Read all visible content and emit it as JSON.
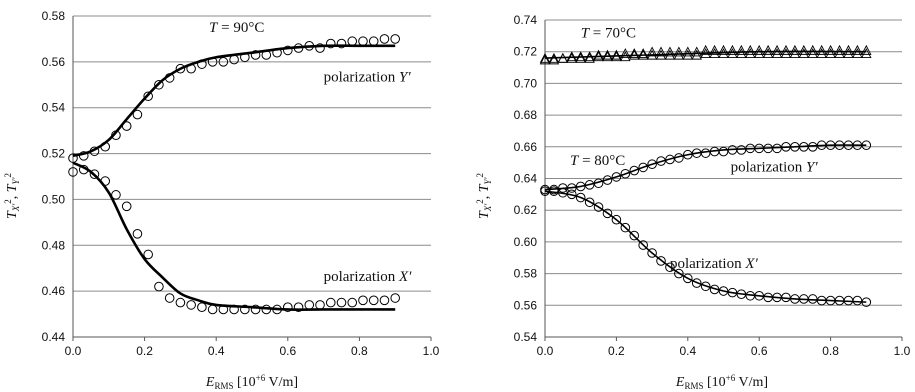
{
  "chart_data": [
    {
      "type": "scatter",
      "xlabel": "E_RMS [10^+6 V/m]",
      "ylabel": "T_X'^2, T_Y'^2",
      "xlim": [
        0.0,
        1.0
      ],
      "ylim": [
        0.44,
        0.58
      ],
      "x_ticks": [
        "0.0",
        "0.2",
        "0.4",
        "0.6",
        "0.8",
        "1.0"
      ],
      "y_ticks": [
        "0.44",
        "0.46",
        "0.48",
        "0.50",
        "0.52",
        "0.54",
        "0.56",
        "0.58"
      ],
      "grid": "horizontal",
      "annotations": [
        {
          "text": "T = 90°C",
          "x": 0.38,
          "y": 0.573
        },
        {
          "text": "polarization Y′",
          "x": 0.7,
          "y": 0.5515
        },
        {
          "text": "polarization X′",
          "x": 0.7,
          "y": 0.4645
        }
      ],
      "series": [
        {
          "marker": "circle",
          "curve": "Y′ measured",
          "x": [
            0.0,
            0.03,
            0.06,
            0.09,
            0.12,
            0.15,
            0.18,
            0.21,
            0.24,
            0.27,
            0.3,
            0.33,
            0.36,
            0.39,
            0.42,
            0.45,
            0.48,
            0.51,
            0.54,
            0.57,
            0.6,
            0.63,
            0.66,
            0.69,
            0.72,
            0.75,
            0.78,
            0.81,
            0.84,
            0.87,
            0.9
          ],
          "y": [
            0.518,
            0.519,
            0.521,
            0.523,
            0.528,
            0.532,
            0.537,
            0.545,
            0.55,
            0.553,
            0.557,
            0.557,
            0.559,
            0.56,
            0.56,
            0.561,
            0.562,
            0.563,
            0.563,
            0.564,
            0.565,
            0.566,
            0.567,
            0.566,
            0.568,
            0.568,
            0.569,
            0.569,
            0.569,
            0.57,
            0.57
          ]
        },
        {
          "marker": "circle",
          "curve": "X′ measured",
          "x": [
            0.0,
            0.03,
            0.06,
            0.09,
            0.12,
            0.15,
            0.18,
            0.21,
            0.24,
            0.27,
            0.3,
            0.33,
            0.36,
            0.39,
            0.42,
            0.45,
            0.48,
            0.51,
            0.54,
            0.57,
            0.6,
            0.63,
            0.66,
            0.69,
            0.72,
            0.75,
            0.78,
            0.81,
            0.84,
            0.87,
            0.9
          ],
          "y": [
            0.512,
            0.513,
            0.511,
            0.508,
            0.502,
            0.497,
            0.485,
            0.476,
            0.462,
            0.457,
            0.455,
            0.454,
            0.453,
            0.452,
            0.452,
            0.452,
            0.452,
            0.452,
            0.452,
            0.452,
            0.453,
            0.453,
            0.454,
            0.454,
            0.455,
            0.455,
            0.455,
            0.456,
            0.456,
            0.456,
            0.457
          ]
        },
        {
          "marker": "line",
          "curve": "Y′ fit",
          "x": [
            0.0,
            0.05,
            0.1,
            0.15,
            0.2,
            0.25,
            0.3,
            0.35,
            0.4,
            0.5,
            0.6,
            0.7,
            0.8,
            0.9
          ],
          "y": [
            0.519,
            0.521,
            0.526,
            0.535,
            0.544,
            0.552,
            0.557,
            0.56,
            0.562,
            0.564,
            0.566,
            0.567,
            0.567,
            0.567
          ]
        },
        {
          "marker": "line",
          "curve": "X′ fit",
          "x": [
            0.0,
            0.05,
            0.1,
            0.15,
            0.2,
            0.25,
            0.3,
            0.35,
            0.4,
            0.5,
            0.6,
            0.7,
            0.8,
            0.9
          ],
          "y": [
            0.516,
            0.512,
            0.503,
            0.487,
            0.474,
            0.466,
            0.459,
            0.456,
            0.454,
            0.453,
            0.452,
            0.452,
            0.452,
            0.452
          ]
        }
      ]
    },
    {
      "type": "scatter",
      "xlabel": "E_RMS [10^+6 V/m]",
      "ylabel": "T_X'^2, T_Y'^2",
      "xlim": [
        0.0,
        1.0
      ],
      "ylim": [
        0.54,
        0.74
      ],
      "x_ticks": [
        "0.0",
        "0.2",
        "0.4",
        "0.6",
        "0.8",
        "1.0"
      ],
      "y_ticks": [
        "0.54",
        "0.56",
        "0.58",
        "0.60",
        "0.62",
        "0.64",
        "0.66",
        "0.68",
        "0.70",
        "0.72",
        "0.74"
      ],
      "grid": "horizontal",
      "annotations": [
        {
          "text": "T = 70°C",
          "x": 0.1,
          "y": 0.729
        },
        {
          "text": "T = 80°C",
          "x": 0.07,
          "y": 0.6485
        },
        {
          "text": "polarization Y′",
          "x": 0.52,
          "y": 0.6445
        },
        {
          "text": "polarization X′",
          "x": 0.35,
          "y": 0.5835
        }
      ],
      "series": [
        {
          "marker": "triangle",
          "curve": "T = 70°C X′",
          "x": [
            0.0,
            0.025,
            0.05,
            0.075,
            0.1,
            0.125,
            0.15,
            0.175,
            0.2,
            0.225,
            0.25,
            0.275,
            0.3,
            0.325,
            0.35,
            0.375,
            0.4,
            0.425,
            0.45,
            0.475,
            0.5,
            0.525,
            0.55,
            0.575,
            0.6,
            0.625,
            0.65,
            0.675,
            0.7,
            0.725,
            0.75,
            0.775,
            0.8,
            0.825,
            0.85,
            0.875,
            0.9
          ],
          "y": [
            0.715,
            0.715,
            0.716,
            0.716,
            0.716,
            0.716,
            0.717,
            0.717,
            0.717,
            0.717,
            0.718,
            0.718,
            0.718,
            0.718,
            0.718,
            0.718,
            0.718,
            0.718,
            0.719,
            0.719,
            0.719,
            0.719,
            0.719,
            0.719,
            0.719,
            0.719,
            0.719,
            0.719,
            0.719,
            0.719,
            0.719,
            0.719,
            0.719,
            0.719,
            0.719,
            0.719,
            0.719
          ]
        },
        {
          "marker": "triangle",
          "curve": "T = 70°C Y′",
          "x": [
            0.0,
            0.025,
            0.05,
            0.075,
            0.1,
            0.125,
            0.15,
            0.175,
            0.2,
            0.225,
            0.25,
            0.275,
            0.3,
            0.325,
            0.35,
            0.375,
            0.4,
            0.425,
            0.45,
            0.475,
            0.5,
            0.525,
            0.55,
            0.575,
            0.6,
            0.625,
            0.65,
            0.675,
            0.7,
            0.725,
            0.75,
            0.775,
            0.8,
            0.825,
            0.85,
            0.875,
            0.9
          ],
          "y": [
            0.716,
            0.716,
            0.716,
            0.717,
            0.717,
            0.717,
            0.718,
            0.718,
            0.718,
            0.719,
            0.719,
            0.719,
            0.72,
            0.72,
            0.72,
            0.72,
            0.72,
            0.72,
            0.721,
            0.721,
            0.721,
            0.721,
            0.721,
            0.721,
            0.721,
            0.721,
            0.721,
            0.721,
            0.721,
            0.721,
            0.721,
            0.721,
            0.721,
            0.721,
            0.721,
            0.721,
            0.721
          ]
        },
        {
          "marker": "circle",
          "curve": "T = 80°C Y′ measured",
          "x": [
            0.0,
            0.025,
            0.05,
            0.075,
            0.1,
            0.125,
            0.15,
            0.175,
            0.2,
            0.225,
            0.25,
            0.275,
            0.3,
            0.325,
            0.35,
            0.375,
            0.4,
            0.425,
            0.45,
            0.475,
            0.5,
            0.525,
            0.55,
            0.575,
            0.6,
            0.625,
            0.65,
            0.675,
            0.7,
            0.725,
            0.75,
            0.775,
            0.8,
            0.825,
            0.85,
            0.875,
            0.9
          ],
          "y": [
            0.633,
            0.633,
            0.634,
            0.634,
            0.635,
            0.636,
            0.637,
            0.639,
            0.641,
            0.643,
            0.645,
            0.647,
            0.649,
            0.651,
            0.652,
            0.653,
            0.655,
            0.656,
            0.656,
            0.657,
            0.657,
            0.658,
            0.658,
            0.659,
            0.659,
            0.659,
            0.659,
            0.66,
            0.66,
            0.66,
            0.66,
            0.661,
            0.661,
            0.661,
            0.661,
            0.661,
            0.661
          ]
        },
        {
          "marker": "circle",
          "curve": "T = 80°C X′ measured",
          "x": [
            0.0,
            0.025,
            0.05,
            0.075,
            0.1,
            0.125,
            0.15,
            0.175,
            0.2,
            0.225,
            0.25,
            0.275,
            0.3,
            0.325,
            0.35,
            0.375,
            0.4,
            0.425,
            0.45,
            0.475,
            0.5,
            0.525,
            0.55,
            0.575,
            0.6,
            0.625,
            0.65,
            0.675,
            0.7,
            0.725,
            0.75,
            0.775,
            0.8,
            0.825,
            0.85,
            0.875,
            0.9
          ],
          "y": [
            0.632,
            0.632,
            0.631,
            0.63,
            0.628,
            0.625,
            0.622,
            0.618,
            0.614,
            0.609,
            0.604,
            0.598,
            0.593,
            0.588,
            0.584,
            0.58,
            0.577,
            0.574,
            0.572,
            0.57,
            0.569,
            0.568,
            0.567,
            0.566,
            0.566,
            0.565,
            0.565,
            0.565,
            0.564,
            0.564,
            0.564,
            0.563,
            0.563,
            0.563,
            0.563,
            0.563,
            0.562
          ]
        },
        {
          "marker": "line",
          "curve": "T = 80°C Y′ fit",
          "x": [
            0.0,
            0.1,
            0.2,
            0.3,
            0.4,
            0.5,
            0.6,
            0.7,
            0.8,
            0.9
          ],
          "y": [
            0.633,
            0.635,
            0.641,
            0.649,
            0.655,
            0.658,
            0.659,
            0.66,
            0.661,
            0.661
          ]
        },
        {
          "marker": "line",
          "curve": "T = 80°C X′ fit",
          "x": [
            0.0,
            0.1,
            0.2,
            0.3,
            0.4,
            0.5,
            0.6,
            0.7,
            0.8,
            0.9
          ],
          "y": [
            0.632,
            0.628,
            0.614,
            0.593,
            0.577,
            0.569,
            0.566,
            0.564,
            0.563,
            0.562
          ]
        },
        {
          "marker": "line",
          "curve": "T = 70°C fit",
          "x": [
            0.0,
            0.3,
            0.6,
            0.9
          ],
          "y": [
            0.716,
            0.718,
            0.72,
            0.72
          ]
        }
      ]
    }
  ]
}
